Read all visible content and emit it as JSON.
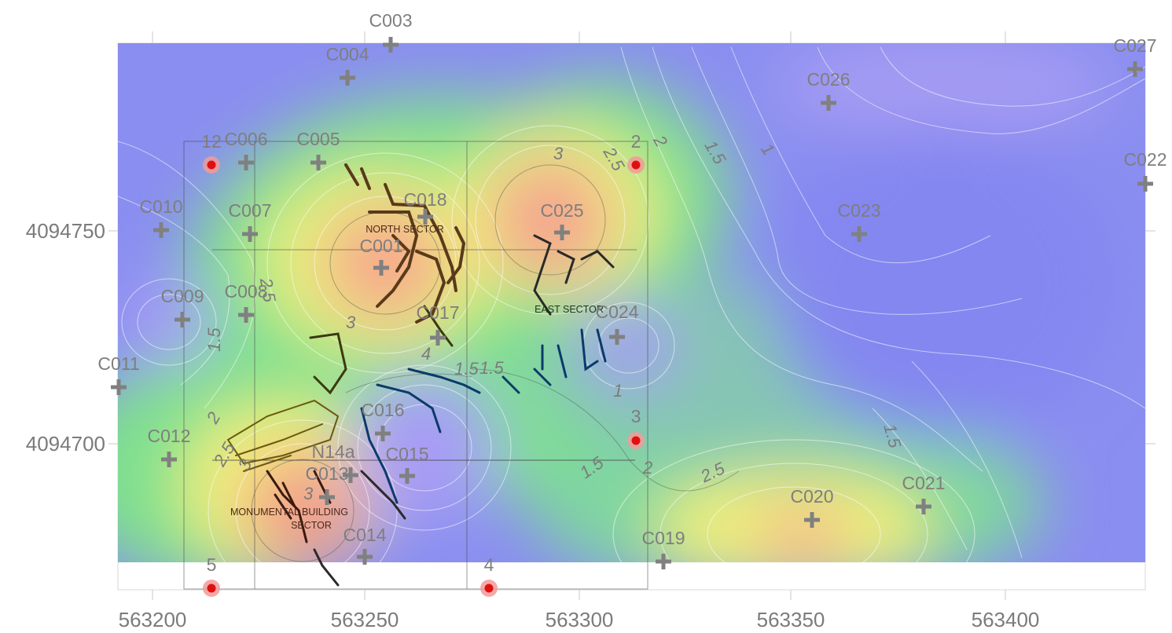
{
  "axes": {
    "x_ticks": [
      "563200",
      "563250",
      "563300",
      "563350",
      "563400"
    ],
    "y_ticks": [
      "4094750",
      "4094700"
    ]
  },
  "stations": [
    {
      "id": "C003",
      "label": "C003"
    },
    {
      "id": "C004",
      "label": "C004"
    },
    {
      "id": "C027",
      "label": "C027"
    },
    {
      "id": "C026",
      "label": "C026"
    },
    {
      "id": "C006",
      "label": "C006"
    },
    {
      "id": "C005",
      "label": "C005"
    },
    {
      "id": "C022",
      "label": "C022"
    },
    {
      "id": "C010",
      "label": "C010"
    },
    {
      "id": "C007",
      "label": "C007"
    },
    {
      "id": "C018",
      "label": "C018"
    },
    {
      "id": "C025",
      "label": "C025"
    },
    {
      "id": "C023",
      "label": "C023"
    },
    {
      "id": "C001",
      "label": "C001"
    },
    {
      "id": "C009",
      "label": "C009"
    },
    {
      "id": "C008",
      "label": "C008"
    },
    {
      "id": "C017",
      "label": "C017"
    },
    {
      "id": "C024",
      "label": "C024"
    },
    {
      "id": "C011",
      "label": "C011"
    },
    {
      "id": "C016",
      "label": "C016"
    },
    {
      "id": "C012",
      "label": "C012"
    },
    {
      "id": "N14a",
      "label": "N14a"
    },
    {
      "id": "C015",
      "label": "C015"
    },
    {
      "id": "C013",
      "label": "C013"
    },
    {
      "id": "C021",
      "label": "C021"
    },
    {
      "id": "C020",
      "label": "C020"
    },
    {
      "id": "C014",
      "label": "C014"
    },
    {
      "id": "C019",
      "label": "C019"
    }
  ],
  "markers": [
    {
      "id": "m12",
      "label": "12"
    },
    {
      "id": "m2",
      "label": "2"
    },
    {
      "id": "m3",
      "label": "3"
    },
    {
      "id": "m5",
      "label": "5"
    },
    {
      "id": "m4",
      "label": "4"
    }
  ],
  "contour_labels": [
    "3",
    "2.5",
    "2",
    "1.5",
    "1",
    "2.5",
    "3",
    "1.5",
    "1.5",
    "2",
    "1",
    "1.5",
    "2.5",
    "1.5",
    "3",
    "2",
    "4",
    "2.5",
    "3",
    "1.5"
  ],
  "sectors": {
    "north": "NORTH SECTOR",
    "east": "EAST SECTOR",
    "monumental_1": "MONUMENTAL BUILDING",
    "monumental_2": "SECTOR"
  },
  "colors": {
    "low": "#8c8cf2",
    "mid": "#7fdc93",
    "high": "#f6a48e",
    "station_cross": "#808080",
    "marker_fill": "#e01010",
    "marker_halo": "#f29a9a"
  }
}
